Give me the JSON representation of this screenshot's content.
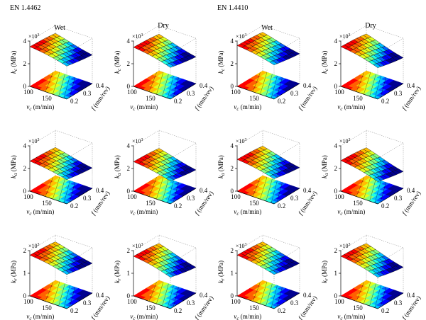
{
  "headers": [
    {
      "label": "EN 1.4462",
      "col": 0
    },
    {
      "label": "EN 1.4410",
      "col": 2
    }
  ],
  "palette": [
    "#00008f",
    "#0000ff",
    "#0060ff",
    "#00bfff",
    "#20ffdf",
    "#80ff80",
    "#dfff20",
    "#ffbf00",
    "#ff6000",
    "#ff0000",
    "#8f0000"
  ],
  "chart_data": [
    {
      "type": "surface",
      "row": 0,
      "col": 0,
      "title": "Wet",
      "zlabel_sym": "k",
      "zlabel_sub": "c",
      "zlabel_unit": " (MPa)",
      "multiplier": "×10",
      "multiplier_exp": "3",
      "zlim": [
        0,
        4
      ],
      "zticks": [
        "0",
        "2",
        "4"
      ],
      "xlabel_sym": "v",
      "xlabel_sub": "c",
      "xlabel_unit": " (m/min)",
      "xticks": [
        "100",
        "150"
      ],
      "ylabel_sym": "f",
      "ylabel_unit": " (mm/rev)",
      "yticks": [
        "0.2",
        "0.3",
        "0.4"
      ],
      "kcBase": 3.1,
      "kcRange": 0.8
    },
    {
      "type": "surface",
      "row": 0,
      "col": 1,
      "title": "Dry",
      "zlabel_sym": "k",
      "zlabel_sub": "c",
      "zlabel_unit": " (MPa)",
      "multiplier": "×10",
      "multiplier_exp": "3",
      "zlim": [
        0,
        4
      ],
      "zticks": [
        "0",
        "2",
        "4"
      ],
      "xlabel_sym": "v",
      "xlabel_sub": "c",
      "xlabel_unit": " (m/min)",
      "xticks": [
        "100",
        "150"
      ],
      "ylabel_sym": "f",
      "ylabel_unit": " (mm/rev)",
      "yticks": [
        "0.2",
        "0.3",
        "0.4"
      ],
      "kcBase": 3.0,
      "kcRange": 0.9
    },
    {
      "type": "surface",
      "row": 0,
      "col": 2,
      "title": "Wet",
      "zlabel_sym": "k",
      "zlabel_sub": "c",
      "zlabel_unit": " (MPa)",
      "multiplier": "×10",
      "multiplier_exp": "3",
      "zlim": [
        0,
        4
      ],
      "zticks": [
        "0",
        "2",
        "4"
      ],
      "xlabel_sym": "v",
      "xlabel_sub": "c",
      "xlabel_unit": " (m/min)",
      "xticks": [
        "100",
        "150"
      ],
      "ylabel_sym": "f",
      "ylabel_unit": " (mm/rev)",
      "yticks": [
        "0.2",
        "0.3",
        "0.4"
      ],
      "kcBase": 3.2,
      "kcRange": 0.8
    },
    {
      "type": "surface",
      "row": 0,
      "col": 3,
      "title": "Dry",
      "zlabel_sym": "k",
      "zlabel_sub": "c",
      "zlabel_unit": " (MPa)",
      "multiplier": "×10",
      "multiplier_exp": "3",
      "zlim": [
        0,
        4
      ],
      "zticks": [
        "0",
        "2",
        "4"
      ],
      "xlabel_sym": "v",
      "xlabel_sub": "c",
      "xlabel_unit": " (m/min)",
      "xticks": [
        "100",
        "150"
      ],
      "ylabel_sym": "f",
      "ylabel_unit": " (mm/rev)",
      "yticks": [
        "0.2",
        "0.3",
        "0.4"
      ],
      "kcBase": 3.0,
      "kcRange": 1.0
    },
    {
      "type": "surface",
      "row": 1,
      "col": 0,
      "title": "",
      "zlabel_sym": "k",
      "zlabel_sub": "a",
      "zlabel_unit": " (MPa)",
      "multiplier": "×10",
      "multiplier_exp": "3",
      "zlim": [
        0,
        4
      ],
      "zticks": [
        "0",
        "2",
        "4"
      ],
      "xlabel_sym": "v",
      "xlabel_sub": "c",
      "xlabel_unit": " (m/min)",
      "xticks": [
        "100",
        "150"
      ],
      "ylabel_sym": "f",
      "ylabel_unit": " (mm/rev)",
      "yticks": [
        "0.2",
        "0.3",
        "0.4"
      ],
      "kcBase": 2.3,
      "kcRange": 0.7
    },
    {
      "type": "surface",
      "row": 1,
      "col": 1,
      "title": "",
      "zlabel_sym": "k",
      "zlabel_sub": "a",
      "zlabel_unit": " (MPa)",
      "multiplier": "×10",
      "multiplier_exp": "3",
      "zlim": [
        0,
        4
      ],
      "zticks": [
        "0",
        "2",
        "4"
      ],
      "xlabel_sym": "v",
      "xlabel_sub": "c",
      "xlabel_unit": " (m/min)",
      "xticks": [
        "100",
        "150"
      ],
      "ylabel_sym": "f",
      "ylabel_unit": " (mm/rev)",
      "yticks": [
        "0.2",
        "0.3",
        "0.4"
      ],
      "kcBase": 2.2,
      "kcRange": 0.8
    },
    {
      "type": "surface",
      "row": 1,
      "col": 2,
      "title": "",
      "zlabel_sym": "k",
      "zlabel_sub": "a",
      "zlabel_unit": " (MPa)",
      "multiplier": "×10",
      "multiplier_exp": "3",
      "zlim": [
        0,
        4
      ],
      "zticks": [
        "0",
        "2",
        "4"
      ],
      "xlabel_sym": "v",
      "xlabel_sub": "c",
      "xlabel_unit": " (m/min)",
      "xticks": [
        "100",
        "150"
      ],
      "ylabel_sym": "f",
      "ylabel_unit": " (mm/rev)",
      "yticks": [
        "0.2",
        "0.3",
        "0.4"
      ],
      "kcBase": 2.4,
      "kcRange": 0.8
    },
    {
      "type": "surface",
      "row": 1,
      "col": 3,
      "title": "",
      "zlabel_sym": "k",
      "zlabel_sub": "a",
      "zlabel_unit": " (MPa)",
      "multiplier": "×10",
      "multiplier_exp": "3",
      "zlim": [
        0,
        4
      ],
      "zticks": [
        "0",
        "2",
        "4"
      ],
      "xlabel_sym": "v",
      "xlabel_sub": "c",
      "xlabel_unit": " (m/min)",
      "xticks": [
        "100",
        "150"
      ],
      "ylabel_sym": "f",
      "ylabel_unit": " (mm/rev)",
      "yticks": [
        "0.2",
        "0.3",
        "0.4"
      ],
      "kcBase": 2.2,
      "kcRange": 1.0
    },
    {
      "type": "surface",
      "row": 2,
      "col": 0,
      "title": "",
      "zlabel_sym": "k",
      "zlabel_sub": "r",
      "zlabel_unit": " (MPa)",
      "multiplier": "×10",
      "multiplier_exp": "3",
      "zlim": [
        0,
        2
      ],
      "zticks": [
        "0",
        "1",
        "2"
      ],
      "xlabel_sym": "v",
      "xlabel_sub": "c",
      "xlabel_unit": " (m/min)",
      "xticks": [
        "100",
        "150"
      ],
      "ylabel_sym": "f",
      "ylabel_unit": " (mm/rev)",
      "yticks": [
        "0.2",
        "0.3",
        "0.4"
      ],
      "kcBase": 1.6,
      "kcRange": 0.4
    },
    {
      "type": "surface",
      "row": 2,
      "col": 1,
      "title": "",
      "zlabel_sym": "k",
      "zlabel_sub": "r",
      "zlabel_unit": " (MPa)",
      "multiplier": "×10",
      "multiplier_exp": "3",
      "zlim": [
        0,
        2
      ],
      "zticks": [
        "0",
        "1",
        "2"
      ],
      "xlabel_sym": "v",
      "xlabel_sub": "c",
      "xlabel_unit": " (m/min)",
      "xticks": [
        "100",
        "150"
      ],
      "ylabel_sym": "f",
      "ylabel_unit": " (mm/rev)",
      "yticks": [
        "0.2",
        "0.3",
        "0.4"
      ],
      "kcBase": 1.5,
      "kcRange": 0.5
    },
    {
      "type": "surface",
      "row": 2,
      "col": 2,
      "title": "",
      "zlabel_sym": "k",
      "zlabel_sub": "r",
      "zlabel_unit": " (MPa)",
      "multiplier": "×10",
      "multiplier_exp": "3",
      "zlim": [
        0,
        2
      ],
      "zticks": [
        "0",
        "1",
        "2"
      ],
      "xlabel_sym": "v",
      "xlabel_sub": "c",
      "xlabel_unit": " (m/min)",
      "xticks": [
        "100",
        "150"
      ],
      "ylabel_sym": "f",
      "ylabel_unit": " (mm/rev)",
      "yticks": [
        "0.2",
        "0.3",
        "0.4"
      ],
      "kcBase": 1.6,
      "kcRange": 0.4
    },
    {
      "type": "surface",
      "row": 2,
      "col": 3,
      "title": "",
      "zlabel_sym": "k",
      "zlabel_sub": "r",
      "zlabel_unit": " (MPa)",
      "multiplier": "×10",
      "multiplier_exp": "3",
      "zlim": [
        0,
        2
      ],
      "zticks": [
        "0",
        "1",
        "2"
      ],
      "xlabel_sym": "v",
      "xlabel_sub": "c",
      "xlabel_unit": " (m/min)",
      "xticks": [
        "100",
        "150"
      ],
      "ylabel_sym": "f",
      "ylabel_unit": " (mm/rev)",
      "yticks": [
        "0.2",
        "0.3",
        "0.4"
      ],
      "kcBase": 1.5,
      "kcRange": 0.5
    }
  ]
}
